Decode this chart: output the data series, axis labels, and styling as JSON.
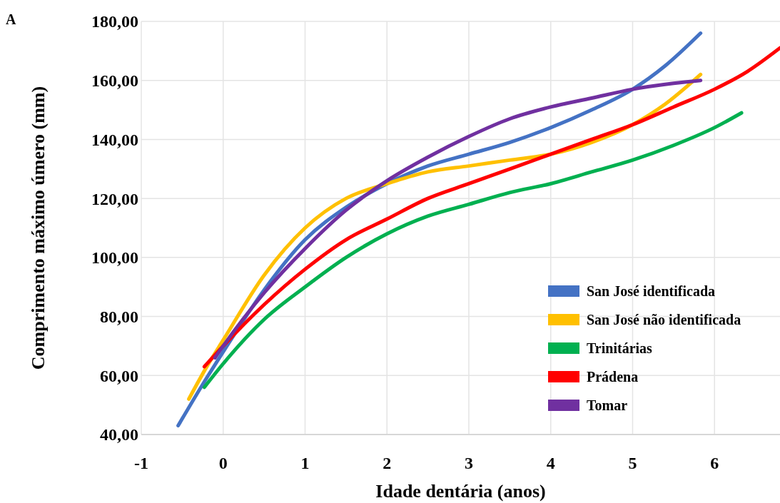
{
  "chart_data": {
    "type": "line",
    "xlabel": "Idade dentária (anos)",
    "ylabel": "Comprimento máximo úmero (mm)",
    "annotations": [
      "A"
    ],
    "xlim": [
      -1,
      6.8
    ],
    "xticks": [
      -1,
      0,
      1,
      2,
      3,
      4,
      5,
      6
    ],
    "ylim": [
      40,
      180
    ],
    "yticks": [
      {
        "value": 40,
        "label": "40,00"
      },
      {
        "value": 60,
        "label": "60,00"
      },
      {
        "value": 80,
        "label": "80,00"
      },
      {
        "value": 100,
        "label": "100,00"
      },
      {
        "value": 120,
        "label": "120,00"
      },
      {
        "value": 140,
        "label": "140,00"
      },
      {
        "value": 160,
        "label": "160,00"
      },
      {
        "value": 180,
        "label": "180,00"
      }
    ],
    "grid": true,
    "legend": "bottom right",
    "marker": "none",
    "line_style": "solid",
    "series": [
      {
        "name": "San José identificada",
        "color": "#4472c4",
        "x": [
          -0.55,
          -0.25,
          0,
          0.5,
          1,
          1.5,
          2,
          2.5,
          3,
          3.5,
          4,
          4.5,
          5,
          5.4,
          5.83
        ],
        "values": [
          43,
          57,
          68,
          89,
          106,
          117,
          125,
          131,
          135,
          139,
          144,
          150,
          157,
          165,
          176
        ]
      },
      {
        "name": "San José não identificada",
        "color": "#ffc000",
        "x": [
          -0.42,
          -0.2,
          0,
          0.5,
          1,
          1.5,
          2,
          2.5,
          3,
          3.5,
          4,
          4.5,
          5,
          5.4,
          5.83
        ],
        "values": [
          52,
          63,
          72,
          94,
          110,
          120,
          125,
          129,
          131,
          133,
          135,
          139,
          145,
          152,
          162
        ]
      },
      {
        "name": "Trinitárias",
        "color": "#00b050",
        "x": [
          -0.23,
          0,
          0.5,
          1,
          1.5,
          2,
          2.5,
          3,
          3.5,
          4,
          4.5,
          5,
          5.5,
          6,
          6.33
        ],
        "values": [
          56,
          64,
          79,
          90,
          100,
          108,
          114,
          118,
          122,
          125,
          129,
          133,
          138,
          144,
          149
        ]
      },
      {
        "name": "Prádena",
        "color": "#ff0000",
        "x": [
          -0.23,
          0,
          0.5,
          1,
          1.5,
          2,
          2.5,
          3,
          3.5,
          4,
          4.5,
          5,
          5.5,
          6,
          6.4,
          6.8
        ],
        "values": [
          63,
          70,
          84,
          96,
          106,
          113,
          120,
          125,
          130,
          135,
          140,
          145,
          151,
          157,
          163,
          171
        ]
      },
      {
        "name": "Tomar",
        "color": "#7030a0",
        "x": [
          -0.1,
          0,
          0.5,
          1,
          1.5,
          2,
          2.5,
          3,
          3.5,
          4,
          4.5,
          5,
          5.5,
          5.83
        ],
        "values": [
          66,
          70,
          88,
          103,
          116,
          126,
          134,
          141,
          147,
          151,
          154,
          157,
          159,
          160
        ]
      }
    ]
  }
}
